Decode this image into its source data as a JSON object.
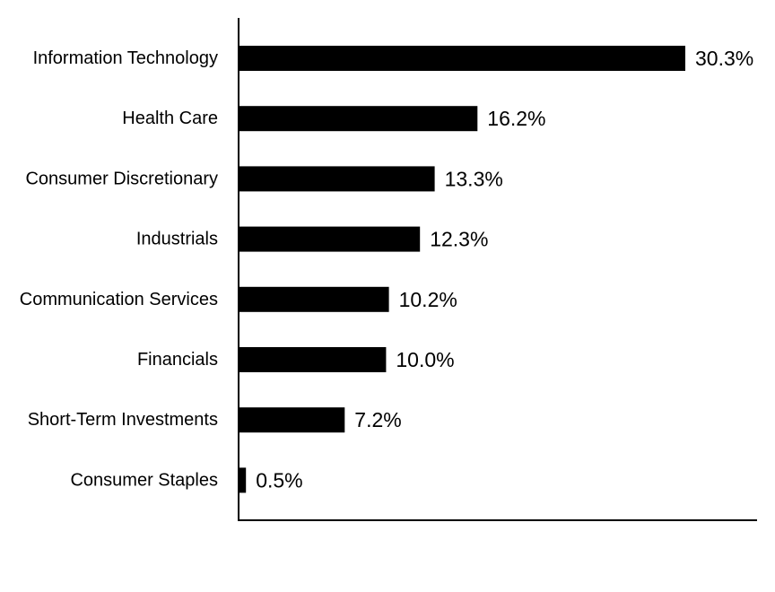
{
  "chart_data": {
    "type": "bar",
    "orientation": "horizontal",
    "categories": [
      "Information Technology",
      "Health Care",
      "Consumer Discretionary",
      "Industrials",
      "Communication Services",
      "Financials",
      "Short-Term Investments",
      "Consumer Staples"
    ],
    "values": [
      30.3,
      16.2,
      13.3,
      12.3,
      10.2,
      10.0,
      7.2,
      0.5
    ],
    "value_labels": [
      "30.3%",
      "16.2%",
      "13.3%",
      "12.3%",
      "10.2%",
      "10.0%",
      "7.2%",
      "0.5%"
    ],
    "unit": "%",
    "xlim": [
      0,
      35
    ],
    "grid": false,
    "legend": "none",
    "bar_color": "#000000"
  }
}
